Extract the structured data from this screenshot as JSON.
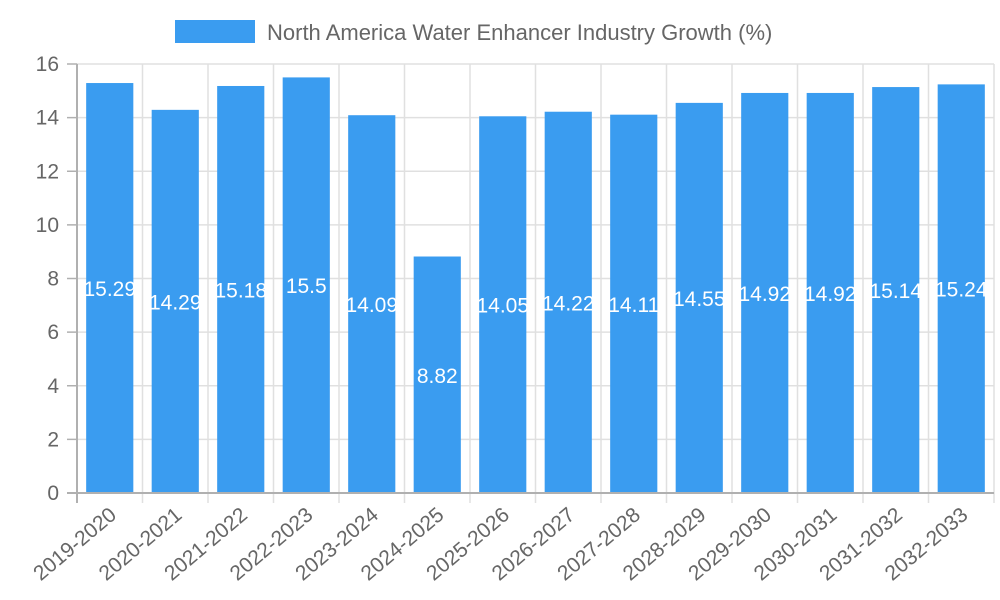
{
  "chart_data": {
    "type": "bar",
    "title": "",
    "legend": {
      "entries": [
        "North America Water Enhancer Industry Growth (%)"
      ],
      "placement": "top-center"
    },
    "categories": [
      "2019-2020",
      "2020-2021",
      "2021-2022",
      "2022-2023",
      "2023-2024",
      "2024-2025",
      "2025-2026",
      "2026-2027",
      "2027-2028",
      "2028-2029",
      "2029-2030",
      "2030-2031",
      "2031-2032",
      "2032-2033"
    ],
    "series": [
      {
        "name": "North America Water Enhancer Industry Growth (%)",
        "values": [
          15.29,
          14.29,
          15.18,
          15.5,
          14.09,
          8.82,
          14.05,
          14.22,
          14.11,
          14.55,
          14.92,
          14.92,
          15.14,
          15.24
        ],
        "data_labels": [
          "15.29",
          "14.29",
          "15.18",
          "15.5",
          "14.09",
          "8.82",
          "14.05",
          "14.22",
          "14.11",
          "14.55",
          "14.92",
          "14.92",
          "15.14",
          "15.24"
        ],
        "color": "#3a9cf0"
      }
    ],
    "xlabel": "",
    "ylabel": "",
    "ylim": [
      0,
      16
    ],
    "yticks": [
      0,
      2,
      4,
      6,
      8,
      10,
      12,
      14,
      16
    ],
    "ytick_labels": [
      "0",
      "2",
      "4",
      "6",
      "8",
      "10",
      "12",
      "14",
      "16"
    ],
    "grid": true,
    "colors": {
      "bar": "#3a9cf0",
      "grid": "#e0e0e0",
      "axis": "#b0b0b0",
      "text": "#666666",
      "label": "#ffffff"
    }
  }
}
